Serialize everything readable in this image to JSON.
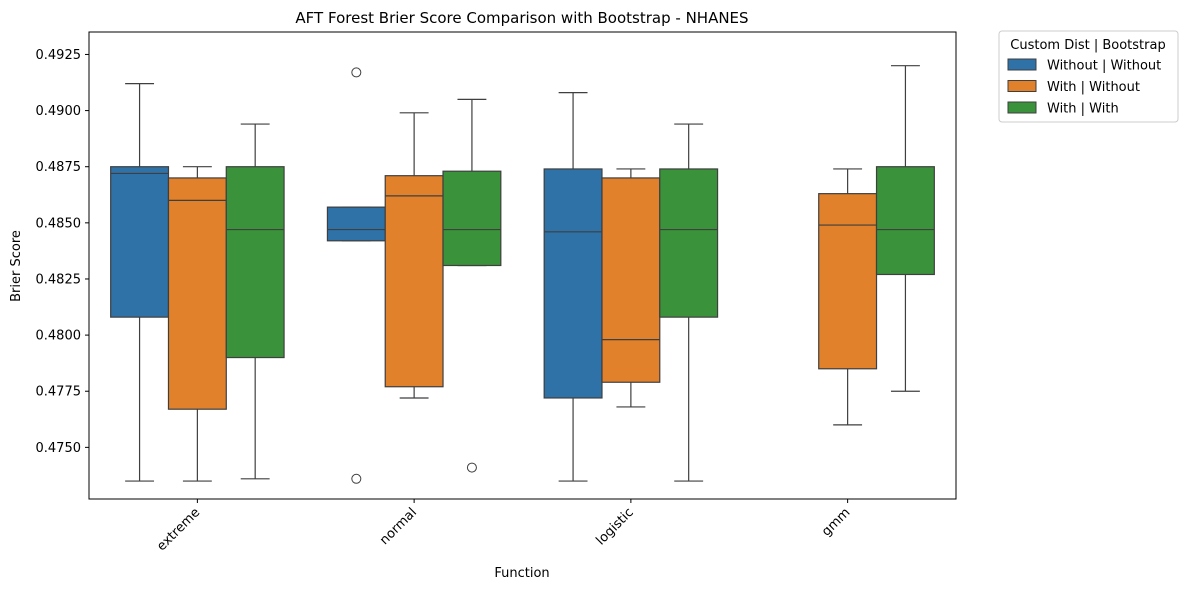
{
  "chart_data": {
    "type": "box",
    "title": "AFT Forest Brier Score Comparison with Bootstrap - NHANES",
    "xlabel": "Function",
    "ylabel": "Brier Score",
    "categories": [
      "extreme",
      "normal",
      "logistic",
      "gmm"
    ],
    "ylim": [
      0.4727,
      0.4935
    ],
    "yticks": [
      0.475,
      0.4775,
      0.48,
      0.4825,
      0.485,
      0.4875,
      0.49,
      0.4925
    ],
    "ytick_labels": [
      "0.4750",
      "0.4775",
      "0.4800",
      "0.4825",
      "0.4850",
      "0.4875",
      "0.4900",
      "0.4925"
    ],
    "grid": false,
    "legend": {
      "title": "Custom Dist | Bootstrap",
      "placement": "outside-top-right"
    },
    "series": [
      {
        "name": "Without | Without",
        "color": "#2e72a8",
        "boxes": [
          {
            "category": "extreme",
            "whisker_low": 0.4735,
            "q1": 0.4808,
            "median": 0.4872,
            "q3": 0.4875,
            "whisker_high": 0.4912,
            "outliers": []
          },
          {
            "category": "normal",
            "whisker_low": 0.4842,
            "q1": 0.4842,
            "median": 0.4847,
            "q3": 0.4857,
            "whisker_high": 0.4857,
            "outliers": [
              0.4917,
              0.4736
            ]
          },
          {
            "category": "logistic",
            "whisker_low": 0.4735,
            "q1": 0.4772,
            "median": 0.4846,
            "q3": 0.4874,
            "whisker_high": 0.4908,
            "outliers": []
          }
        ]
      },
      {
        "name": "With | Without",
        "color": "#e1812b",
        "boxes": [
          {
            "category": "extreme",
            "whisker_low": 0.4735,
            "q1": 0.4767,
            "median": 0.486,
            "q3": 0.487,
            "whisker_high": 0.4875,
            "outliers": []
          },
          {
            "category": "normal",
            "whisker_low": 0.4772,
            "q1": 0.4777,
            "median": 0.4862,
            "q3": 0.4871,
            "whisker_high": 0.4899,
            "outliers": []
          },
          {
            "category": "logistic",
            "whisker_low": 0.4768,
            "q1": 0.4779,
            "median": 0.4798,
            "q3": 0.487,
            "whisker_high": 0.4874,
            "outliers": []
          },
          {
            "category": "gmm",
            "whisker_low": 0.476,
            "q1": 0.4785,
            "median": 0.4849,
            "q3": 0.4863,
            "whisker_high": 0.4874,
            "outliers": []
          }
        ]
      },
      {
        "name": "With | With",
        "color": "#3a923a",
        "boxes": [
          {
            "category": "extreme",
            "whisker_low": 0.4736,
            "q1": 0.479,
            "median": 0.4847,
            "q3": 0.4875,
            "whisker_high": 0.4894,
            "outliers": []
          },
          {
            "category": "normal",
            "whisker_low": 0.4831,
            "q1": 0.4831,
            "median": 0.4847,
            "q3": 0.4873,
            "whisker_high": 0.4905,
            "outliers": [
              0.4741
            ]
          },
          {
            "category": "logistic",
            "whisker_low": 0.4735,
            "q1": 0.4808,
            "median": 0.4847,
            "q3": 0.4874,
            "whisker_high": 0.4894,
            "outliers": []
          },
          {
            "category": "gmm",
            "whisker_low": 0.4775,
            "q1": 0.4827,
            "median": 0.4847,
            "q3": 0.4875,
            "whisker_high": 0.492,
            "outliers": []
          }
        ]
      }
    ]
  }
}
